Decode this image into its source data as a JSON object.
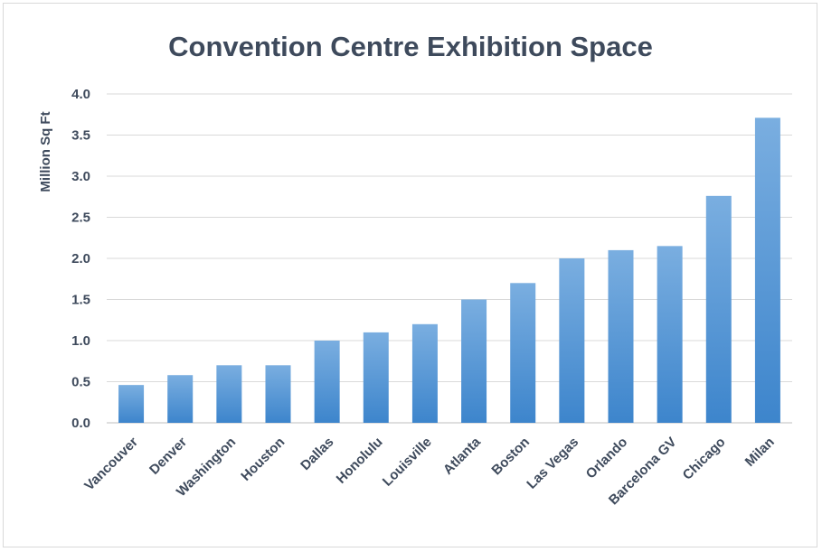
{
  "chart_data": {
    "type": "bar",
    "title": "Convention Centre Exhibition Space",
    "xlabel": "",
    "ylabel": "Million Sq Ft",
    "categories": [
      "Vancouver",
      "Denver",
      "Washington",
      "Houston",
      "Dallas",
      "Honolulu",
      "Louisville",
      "Atlanta",
      "Boston",
      "Las Vegas",
      "Orlando",
      "Barcelona GV",
      "Chicago",
      "Milan"
    ],
    "values": [
      0.46,
      0.58,
      0.7,
      0.7,
      1.0,
      1.1,
      1.2,
      1.5,
      1.7,
      2.0,
      2.1,
      2.15,
      2.76,
      3.71
    ],
    "ylim": [
      0,
      4.0
    ],
    "yticks": [
      "0.0",
      "0.5",
      "1.0",
      "1.5",
      "2.0",
      "2.5",
      "3.0",
      "3.5",
      "4.0"
    ],
    "grid": true,
    "legend": "none",
    "colors": {
      "bar_top": "#7aaee0",
      "bar_bottom": "#3d85cc",
      "text": "#3e4a5c"
    }
  }
}
